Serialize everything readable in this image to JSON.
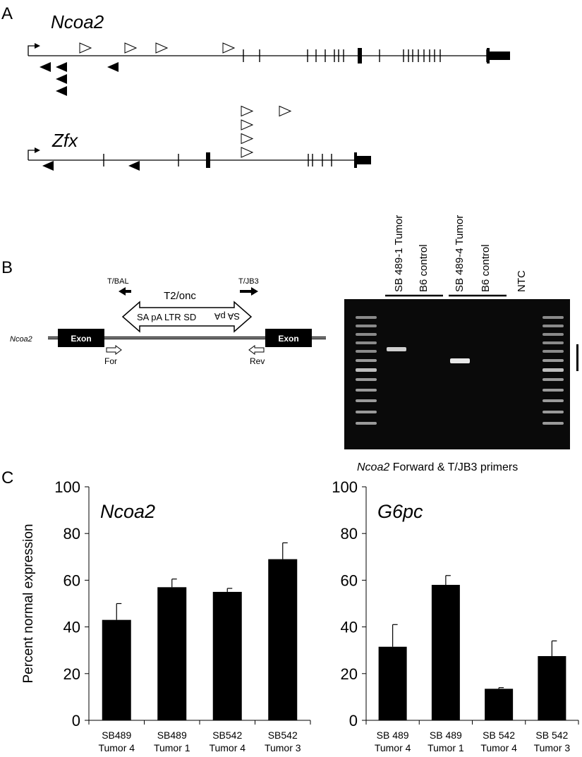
{
  "panels": {
    "a": {
      "letter": "A",
      "ncoa2": {
        "name": "Ncoa2",
        "exons": [
          345,
          368,
          436,
          448,
          461,
          474,
          480,
          487,
          510,
          538,
          572,
          579,
          585,
          593,
          601,
          609,
          616,
          624,
          690
        ],
        "thick_exons": [
          510
        ],
        "open_triangles": [
          {
            "x": 121
          },
          {
            "x": 185
          },
          {
            "x": 229
          },
          {
            "x": 324
          }
        ],
        "solid_triangles": [
          {
            "x": 64,
            "row": 0
          },
          {
            "x": 87,
            "row": 0
          },
          {
            "x": 160,
            "row": 0
          },
          {
            "x": 87,
            "row": 1
          },
          {
            "x": 87,
            "row": 2
          }
        ]
      },
      "zfx": {
        "name": "Zfx",
        "exons": [
          147,
          253,
          295,
          437,
          443,
          457,
          470
        ],
        "thick_exons": [
          295
        ],
        "open_triangles": [
          {
            "x": 350,
            "row": 0
          },
          {
            "x": 350,
            "row": 1
          },
          {
            "x": 350,
            "row": 2
          },
          {
            "x": 350,
            "row": 3
          },
          {
            "x": 404,
            "row": 3
          }
        ],
        "solid_triangles": [
          {
            "x": 68
          },
          {
            "x": 190
          }
        ]
      }
    },
    "b": {
      "letter": "B",
      "transposon_label": "T2/onc",
      "transposon_text": "SA pA  LTR SD",
      "transposon_text_mirrored": "SA pA",
      "primer_left": "T/BAL",
      "primer_right": "T/JB3",
      "gene_label": "Ncoa2",
      "exon_left": "Exon",
      "exon_right": "Exon",
      "for_label": "For",
      "rev_label": "Rev",
      "lane_labels": [
        "SB 489-1 Tumor",
        "B6 control",
        "SB 489-4 Tumor",
        "B6 control",
        "NTC"
      ],
      "gel_caption_italic": "Ncoa2",
      "gel_caption_rest": " Forward  & T/JB3 primers"
    },
    "c": {
      "letter": "C"
    }
  },
  "chart_data": [
    {
      "type": "bar",
      "title": "Ncoa2",
      "ylabel": "Percent normal expression",
      "ylim": [
        0,
        100
      ],
      "yticks": [
        0,
        20,
        40,
        60,
        80,
        100
      ],
      "categories": [
        [
          "SB489",
          "Tumor 4"
        ],
        [
          "SB489",
          "Tumor 1"
        ],
        [
          "SB542",
          "Tumor 4"
        ],
        [
          "SB542",
          "Tumor 3"
        ]
      ],
      "values": [
        43,
        57,
        55,
        69
      ],
      "errors": [
        7,
        3.5,
        1.5,
        7
      ]
    },
    {
      "type": "bar",
      "title": "G6pc",
      "ylabel": "",
      "ylim": [
        0,
        100
      ],
      "yticks": [
        0,
        20,
        40,
        60,
        80,
        100
      ],
      "categories": [
        [
          "SB 489",
          "Tumor 4"
        ],
        [
          "SB 489",
          "Tumor 1"
        ],
        [
          "SB 542",
          "Tumor 4"
        ],
        [
          "SB 542",
          "Tumor 3"
        ]
      ],
      "values": [
        31.5,
        58,
        13.5,
        27.5
      ],
      "errors": [
        9.5,
        4,
        0.5,
        6.5
      ]
    }
  ]
}
